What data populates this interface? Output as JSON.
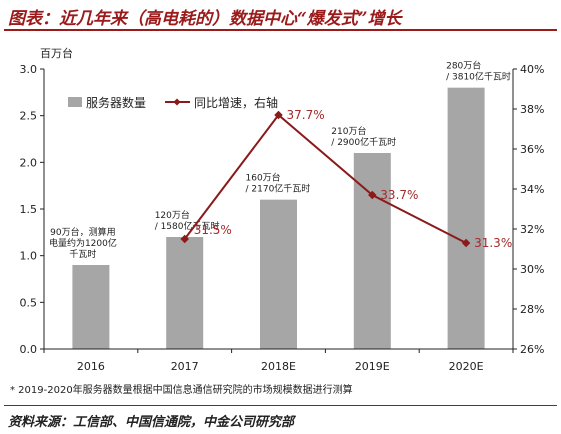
{
  "page": {
    "title": "图表：近几年来（高电耗的）数据中心“爆发式”增长",
    "note": "* 2019-2020年服务器数量根据中国信息通信研究院的市场规模数据进行测算",
    "source": "资料来源：工信部、中国信通院，中金公司研究部"
  },
  "colors": {
    "title": "#9b1b1b",
    "bar": "#a6a6a6",
    "line": "#8b1a1a",
    "line_label": "#a52a2a"
  },
  "chart_data": {
    "type": "bar",
    "categories": [
      "2016",
      "2017",
      "2018E",
      "2019E",
      "2020E"
    ],
    "y_left_unit": "百万台",
    "y_left_lim": [
      0,
      3.0
    ],
    "y_left_ticks": [
      "0.0",
      "0.5",
      "1.0",
      "1.5",
      "2.0",
      "2.5",
      "3.0"
    ],
    "y_right_lim": [
      26,
      40
    ],
    "y_right_ticks": [
      "26%",
      "28%",
      "30%",
      "32%",
      "34%",
      "36%",
      "38%",
      "40%"
    ],
    "grid": false,
    "legend_position": "top-left",
    "series": [
      {
        "name": "服务器数量",
        "kind": "bar",
        "axis": "left",
        "values": [
          0.9,
          1.2,
          1.6,
          2.1,
          2.8
        ],
        "bar_labels": [
          [
            "90万台，测算用",
            "电量约为1200亿",
            "千瓦时"
          ],
          [
            "120万台",
            "/ 1580亿千瓦时"
          ],
          [
            "160万台",
            "/ 2170亿千瓦时"
          ],
          [
            "210万台",
            "/ 2900亿千瓦时"
          ],
          [
            "280万台",
            "/ 3810亿千瓦时"
          ]
        ]
      },
      {
        "name": "同比增速，右轴",
        "kind": "line",
        "axis": "right",
        "values": [
          null,
          31.5,
          37.7,
          33.7,
          31.3
        ],
        "labels": [
          null,
          "31.5%",
          "37.7%",
          "33.7%",
          "31.3%"
        ]
      }
    ]
  }
}
